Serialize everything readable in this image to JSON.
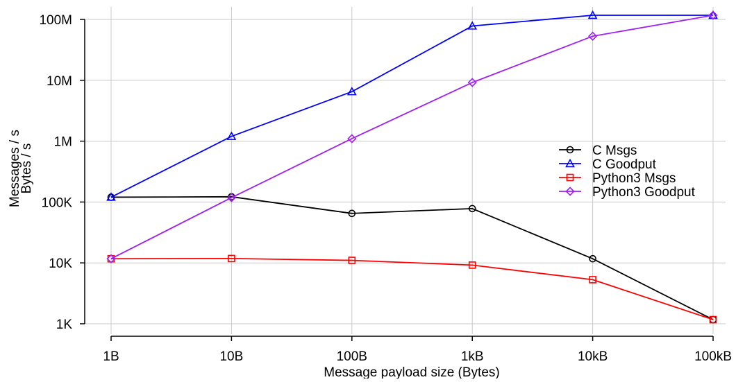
{
  "chart_data": {
    "type": "line",
    "x_scale": "log",
    "y_scale": "log",
    "x_tick_labels": [
      "1B",
      "10B",
      "100B",
      "1kB",
      "10kB",
      "100kB"
    ],
    "x_values": [
      1,
      10,
      100,
      1000,
      10000,
      100000
    ],
    "y_tick_labels": [
      "1K",
      "10K",
      "100K",
      "1M",
      "10M",
      "100M"
    ],
    "y_tick_values": [
      1000,
      10000,
      100000,
      1000000,
      10000000,
      100000000
    ],
    "ylim": [
      1000,
      130000000
    ],
    "xlabel": "Message payload size (Bytes)",
    "ylabel_lines": [
      "Messages / s",
      "Bytes / s"
    ],
    "grid": true,
    "legend_position": "right",
    "series": [
      {
        "name": "C Msgs",
        "color": "#000000",
        "marker": "circle",
        "values": [
          120000,
          122000,
          65000,
          78000,
          11700,
          1170
        ]
      },
      {
        "name": "C Goodput",
        "color": "#0000ff",
        "marker": "triangle",
        "values": [
          120000,
          1200000,
          6500000,
          78000000,
          117000000,
          117000000
        ]
      },
      {
        "name": "Python3 Msgs",
        "color": "#ff0000",
        "marker": "square",
        "values": [
          11700,
          11800,
          11000,
          9200,
          5300,
          1170
        ]
      },
      {
        "name": "Python3 Goodput",
        "color": "#a020f0",
        "marker": "diamond",
        "values": [
          11700,
          118000,
          1100000,
          9200000,
          53000000,
          117000000
        ]
      }
    ]
  }
}
